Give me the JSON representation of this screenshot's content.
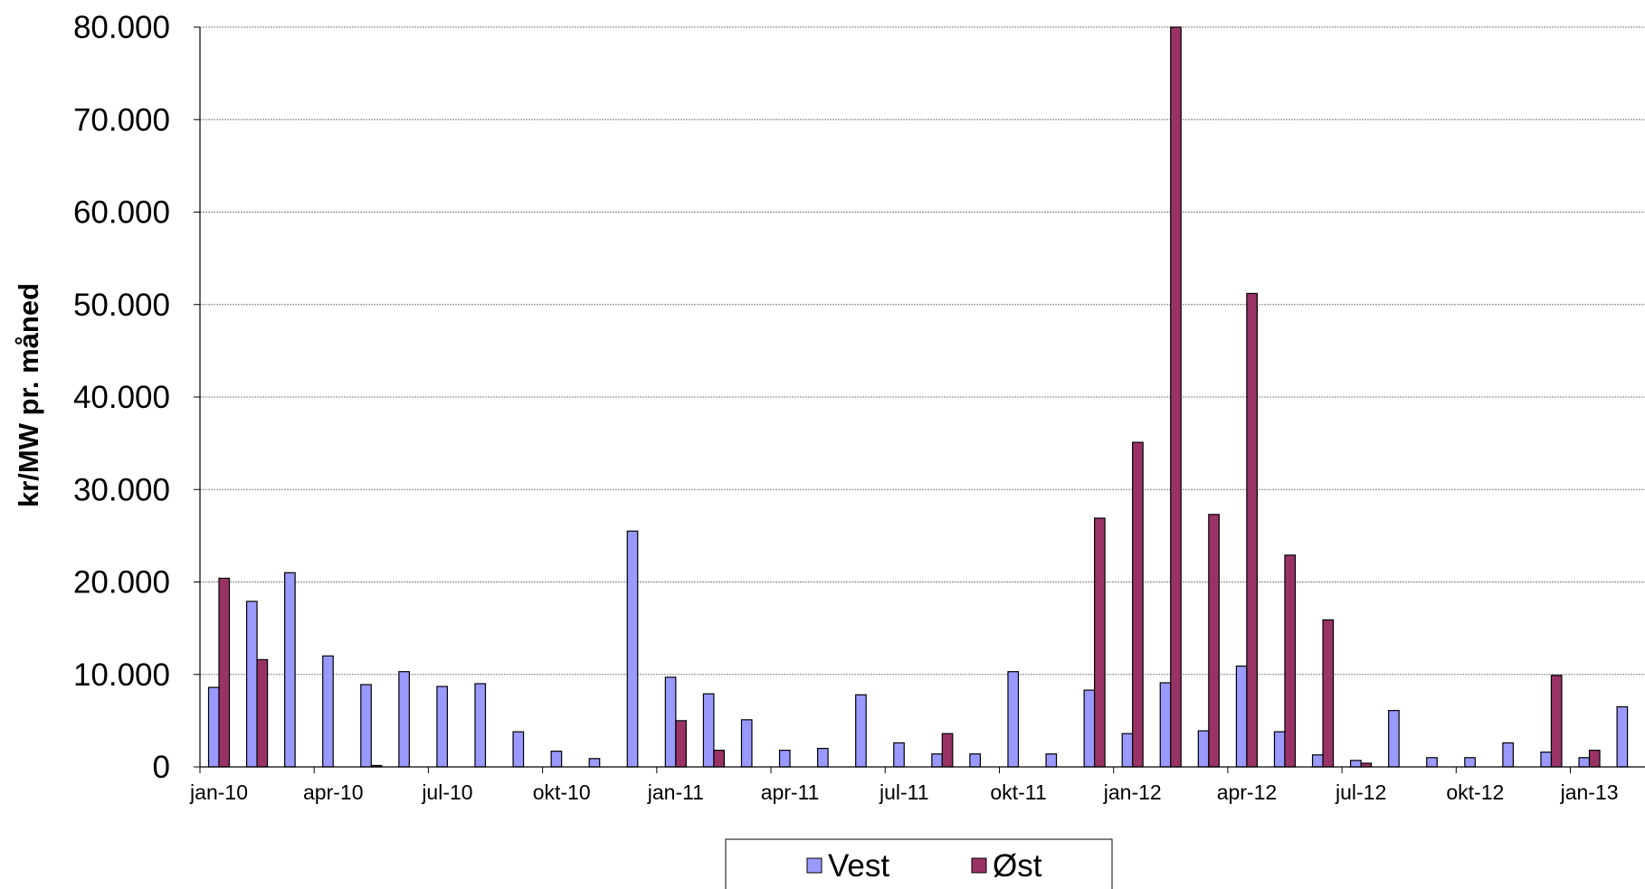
{
  "chart_data": {
    "type": "bar",
    "title": "",
    "xlabel": "",
    "ylabel": "kr/MW pr. måned",
    "ylim": [
      0,
      80000
    ],
    "yticks": [
      0,
      10000,
      20000,
      30000,
      40000,
      50000,
      60000,
      70000,
      80000
    ],
    "ytick_labels": [
      "0",
      "10.000",
      "20.000",
      "30.000",
      "40.000",
      "50.000",
      "60.000",
      "70.000",
      "80.000"
    ],
    "grid": "horizontal",
    "legend_position": "bottom",
    "categories": [
      "jan-10",
      "feb-10",
      "mar-10",
      "apr-10",
      "mai-10",
      "jun-10",
      "jul-10",
      "aug-10",
      "sep-10",
      "okt-10",
      "nov-10",
      "des-10",
      "jan-11",
      "feb-11",
      "mar-11",
      "apr-11",
      "mai-11",
      "jun-11",
      "jul-11",
      "aug-11",
      "sep-11",
      "okt-11",
      "nov-11",
      "des-11",
      "jan-12",
      "feb-12",
      "mar-12",
      "apr-12",
      "mai-12",
      "jun-12",
      "jul-12",
      "aug-12",
      "sep-12",
      "okt-12",
      "nov-12",
      "des-12",
      "jan-13",
      "feb-13"
    ],
    "tick_labels": [
      "jan-10",
      "apr-10",
      "jul-10",
      "okt-10",
      "jan-11",
      "apr-11",
      "jul-11",
      "okt-11",
      "jan-12",
      "apr-12",
      "jul-12",
      "okt-12",
      "jan-13"
    ],
    "series": [
      {
        "name": "Vest",
        "color": "#9999ff",
        "values": [
          8600,
          17900,
          21000,
          12000,
          8900,
          10300,
          8700,
          9000,
          3800,
          1700,
          900,
          25500,
          9700,
          7900,
          5100,
          1800,
          2000,
          7800,
          2600,
          1400,
          1400,
          10300,
          1400,
          8300,
          3600,
          9100,
          3900,
          10900,
          3800,
          1300,
          700,
          6100,
          1000,
          1000,
          2600,
          1600,
          1000,
          6500
        ]
      },
      {
        "name": "Øst",
        "color": "#993366",
        "values": [
          20400,
          11600,
          0,
          0,
          150,
          0,
          0,
          0,
          0,
          0,
          0,
          0,
          5000,
          1800,
          0,
          0,
          0,
          0,
          0,
          3600,
          0,
          0,
          0,
          26900,
          35100,
          80000,
          27300,
          51200,
          22900,
          15900,
          400,
          0,
          0,
          0,
          0,
          9900,
          1800,
          0
        ]
      }
    ]
  }
}
